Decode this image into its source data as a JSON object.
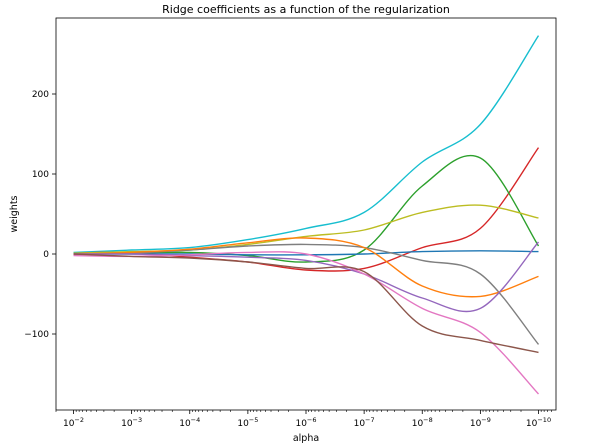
{
  "chart_data": {
    "type": "line",
    "title": "Ridge coefficients as a function of the regularization",
    "xlabel": "alpha",
    "ylabel": "weights",
    "xscale": "log",
    "x_reversed": true,
    "xlim": [
      0.02,
      5e-11
    ],
    "ylim": [
      -195,
      295
    ],
    "grid": false,
    "legend": "none",
    "x": [
      0.01,
      0.001,
      0.0001,
      1e-05,
      1e-06,
      1e-07,
      1e-08,
      1e-09,
      1e-10
    ],
    "x_ticks": [
      {
        "value": 0.01,
        "base": "10",
        "exp": "−2"
      },
      {
        "value": 0.001,
        "base": "10",
        "exp": "−3"
      },
      {
        "value": 0.0001,
        "base": "10",
        "exp": "−4"
      },
      {
        "value": 1e-05,
        "base": "10",
        "exp": "−5"
      },
      {
        "value": 1e-06,
        "base": "10",
        "exp": "−6"
      },
      {
        "value": 1e-07,
        "base": "10",
        "exp": "−7"
      },
      {
        "value": 1e-08,
        "base": "10",
        "exp": "−8"
      },
      {
        "value": 1e-09,
        "base": "10",
        "exp": "−9"
      },
      {
        "value": 1e-10,
        "base": "10",
        "exp": "−10"
      }
    ],
    "y_ticks": [
      {
        "value": 200,
        "label": "200"
      },
      {
        "value": 100,
        "label": "100"
      },
      {
        "value": 0,
        "label": "0"
      },
      {
        "value": -100,
        "label": "−100"
      }
    ],
    "series": [
      {
        "color": "#17becf",
        "values": [
          2,
          5,
          8,
          18,
          32,
          52,
          115,
          162,
          273
        ]
      },
      {
        "color": "#d62728",
        "values": [
          1,
          2,
          -4,
          -10,
          -20,
          -18,
          8,
          32,
          133
        ]
      },
      {
        "color": "#2ca02c",
        "values": [
          0,
          1,
          2,
          -2,
          -10,
          5,
          85,
          120,
          10
        ]
      },
      {
        "color": "#bcbd22",
        "values": [
          1,
          3,
          5,
          12,
          22,
          30,
          52,
          61,
          45
        ]
      },
      {
        "color": "#1f77b4",
        "values": [
          0,
          0,
          0,
          -1,
          -1,
          0,
          3,
          4,
          3
        ]
      },
      {
        "color": "#7f7f7f",
        "values": [
          0,
          1,
          5,
          10,
          12,
          8,
          -8,
          -25,
          -113
        ]
      },
      {
        "color": "#ff7f0e",
        "values": [
          0,
          2,
          6,
          14,
          20,
          8,
          -40,
          -53,
          -28
        ]
      },
      {
        "color": "#9467bd",
        "values": [
          0,
          0,
          -2,
          -4,
          -8,
          -25,
          -55,
          -68,
          15
        ]
      },
      {
        "color": "#e377c2",
        "values": [
          -2,
          -3,
          -1,
          2,
          0,
          -25,
          -68,
          -98,
          -175
        ]
      },
      {
        "color": "#8c564b",
        "values": [
          0,
          -3,
          -5,
          -10,
          -18,
          -22,
          -90,
          -108,
          -123
        ]
      }
    ]
  }
}
